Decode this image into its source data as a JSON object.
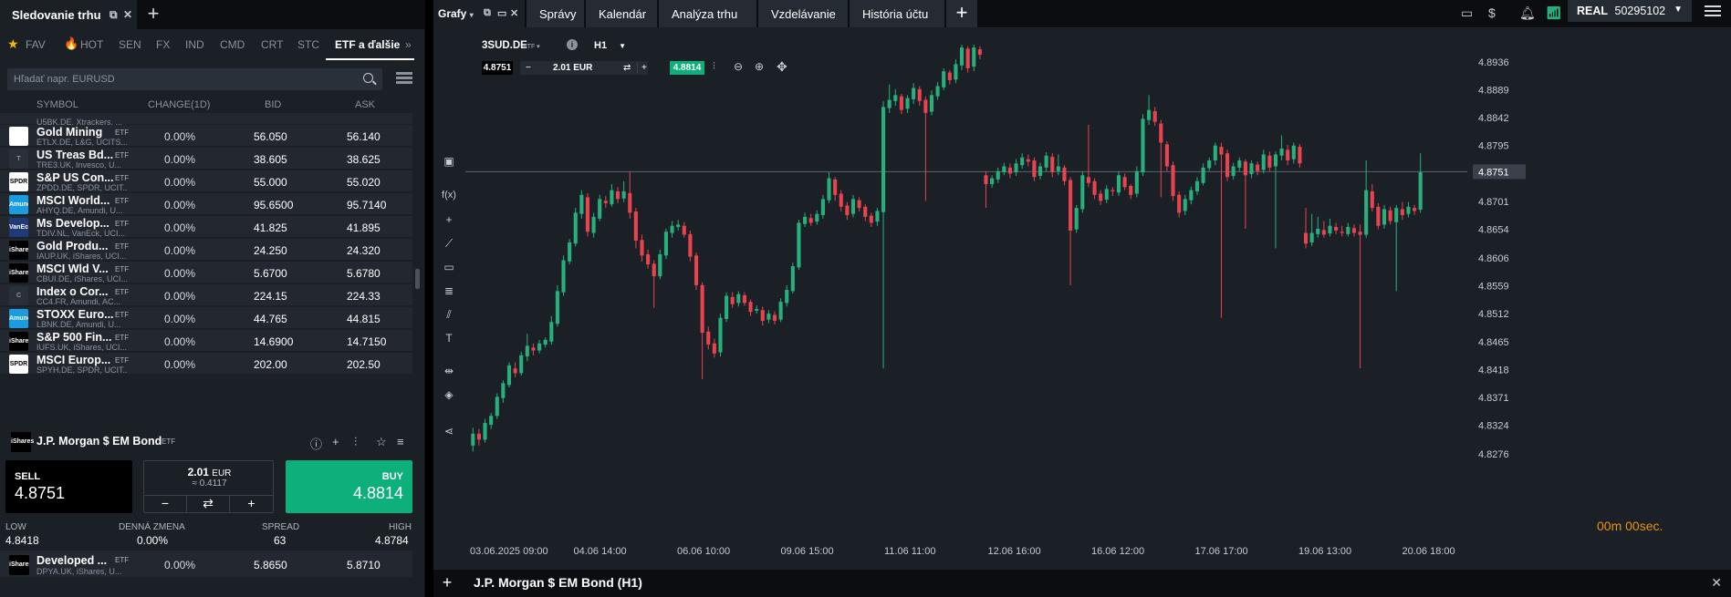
{
  "watchlist": {
    "title": "Sledovanie trhu",
    "tabs": [
      {
        "label": "FAV"
      },
      {
        "label": "HOT"
      },
      {
        "label": "SEN"
      },
      {
        "label": "FX"
      },
      {
        "label": "IND"
      },
      {
        "label": "CMD"
      },
      {
        "label": "CRT"
      },
      {
        "label": "STC"
      },
      {
        "label": "ETF a ďalšie"
      }
    ],
    "search_placeholder": "Hľadať napr. EURUSD",
    "columns": {
      "symbol": "SYMBOL",
      "change": "CHANGE(1D)",
      "bid": "BID",
      "ask": "ASK"
    },
    "partial_row_desc": "U5BK.DE, Xtrackers, ...",
    "rows": [
      {
        "name": "Gold Mining",
        "type": "ETF",
        "desc": "ETLX.DE, L&G, UCITS...",
        "change": "0.00%",
        "bid": "56.050",
        "ask": "56.140",
        "logo": "",
        "logo_bg": "#ffffff",
        "logo_fg": "#2a6e3a"
      },
      {
        "name": "US Treas Bd...",
        "type": "ETF",
        "desc": "TRE3.UK, Invesco, U...",
        "change": "0.00%",
        "bid": "38.605",
        "ask": "38.625",
        "logo": "T",
        "logo_bg": "#2a3039",
        "logo_fg": "#8a929c"
      },
      {
        "name": "S&P US Con...",
        "type": "ETF",
        "desc": "ZPDD.DE, SPDR, UCIT...",
        "change": "0.00%",
        "bid": "55.000",
        "ask": "55.020",
        "logo": "SPDR",
        "logo_bg": "#ffffff",
        "logo_fg": "#000000"
      },
      {
        "name": "MSCI World...",
        "type": "ETF",
        "desc": "AHYQ.DE, Amundi, U...",
        "change": "0.00%",
        "bid": "95.6500",
        "ask": "95.7140",
        "logo": "Amundi",
        "logo_bg": "#1a9de0",
        "logo_fg": "#ffffff"
      },
      {
        "name": "Ms Develop...",
        "type": "ETF",
        "desc": "TDIV.NL, VanEck, UCI...",
        "change": "0.00%",
        "bid": "41.825",
        "ask": "41.895",
        "logo": "VanEck",
        "logo_bg": "#1f3a78",
        "logo_fg": "#ffffff"
      },
      {
        "name": "Gold Produ...",
        "type": "ETF",
        "desc": "IAUP.UK, iShares, UCI...",
        "change": "0.00%",
        "bid": "24.250",
        "ask": "24.320",
        "logo": "iShares",
        "logo_bg": "#000000",
        "logo_fg": "#ffffff"
      },
      {
        "name": "MSCI Wld V...",
        "type": "ETF",
        "desc": "CBUI.DE, iShares, UCI...",
        "change": "0.00%",
        "bid": "5.6700",
        "ask": "5.6780",
        "logo": "iShares",
        "logo_bg": "#000000",
        "logo_fg": "#ffffff"
      },
      {
        "name": "Index o Cor...",
        "type": "ETF",
        "desc": "CC4.FR, Amundi, AC...",
        "change": "0.00%",
        "bid": "224.15",
        "ask": "224.33",
        "logo": "C",
        "logo_bg": "#2a3039",
        "logo_fg": "#8a929c"
      },
      {
        "name": "STOXX Euro...",
        "type": "ETF",
        "desc": "LBNK.DE, Amundi, U...",
        "change": "0.00%",
        "bid": "44.765",
        "ask": "44.815",
        "logo": "Amundi",
        "logo_bg": "#1a9de0",
        "logo_fg": "#ffffff"
      },
      {
        "name": "S&P 500 Fin...",
        "type": "ETF",
        "desc": "IUFS.UK, iShares, UCI...",
        "change": "0.00%",
        "bid": "14.6900",
        "ask": "14.7150",
        "logo": "iShares",
        "logo_bg": "#000000",
        "logo_fg": "#ffffff"
      },
      {
        "name": "MSCI Europ...",
        "type": "ETF",
        "desc": "SPYH.DE, SPDR, UCIT...",
        "change": "0.00%",
        "bid": "202.00",
        "ask": "202.50",
        "logo": "SPDR",
        "logo_bg": "#ffffff",
        "logo_fg": "#000000"
      }
    ],
    "last_row": {
      "name": "Developed ...",
      "type": "ETF",
      "desc": "DPYA.UK, iShares, U...",
      "change": "0.00%",
      "bid": "5.8650",
      "ask": "5.8710",
      "logo": "iShares",
      "logo_bg": "#000000",
      "logo_fg": "#ffffff"
    }
  },
  "detail": {
    "name": "J.P. Morgan $ EM Bond",
    "type": "ETF",
    "logo": "iShares",
    "sell_label": "SELL",
    "sell_price": "4.8751",
    "volume": "2.01",
    "volume_unit": "EUR",
    "volume_approx": "≈ 0.4117",
    "buy_label": "BUY",
    "buy_price": "4.8814",
    "stats": [
      {
        "label": "LOW",
        "value": "4.8418"
      },
      {
        "label": "DENNÁ ZMENA",
        "value": "0.00%"
      },
      {
        "label": "SPREAD",
        "value": "63"
      },
      {
        "label": "HIGH",
        "value": "4.8784"
      }
    ]
  },
  "chart_panel": {
    "menu_label": "Grafy",
    "tabs": [
      {
        "label": "Správy"
      },
      {
        "label": "Kalendár"
      },
      {
        "label": "Analýza trhu"
      },
      {
        "label": "Vzdelávanie"
      },
      {
        "label": "História účtu"
      }
    ],
    "account_type": "REAL",
    "account_number": "50295102",
    "symbol": "3SUD.DE",
    "symbol_type": "ETF",
    "timeframe": "H1",
    "bid_chip": "4.8751",
    "volume_chip": "2.01 EUR",
    "ask_chip": "4.8814",
    "countdown": "00m 00sec.",
    "bottom_title": "J.P. Morgan $ EM Bond (H1)"
  },
  "chart_data": {
    "type": "candlestick",
    "y_ticks": [
      4.8936,
      4.8889,
      4.8842,
      4.8795,
      4.8751,
      4.8701,
      4.8654,
      4.8606,
      4.8559,
      4.8512,
      4.8465,
      4.8418,
      4.8371,
      4.8324,
      4.8276
    ],
    "ylim": [
      4.8276,
      4.8971
    ],
    "x_ticks": [
      "03.06.2025 09:00",
      "04.06 14:00",
      "06.06 10:00",
      "09.06 15:00",
      "11.06 11:00",
      "12.06 16:00",
      "16.06 12:00",
      "17.06 17:00",
      "19.06 13:00",
      "20.06 18:00"
    ],
    "current_price": 4.8751,
    "colors": {
      "up": "#27b07c",
      "down": "#e8434f"
    },
    "candles": [
      [
        4.829,
        4.831,
        4.828,
        4.832
      ],
      [
        4.831,
        4.83,
        4.829,
        4.8318
      ],
      [
        4.83,
        4.8328,
        4.8295,
        4.8335
      ],
      [
        4.8325,
        4.834,
        4.8318,
        4.8345
      ],
      [
        4.834,
        4.8372,
        4.8335,
        4.8378
      ],
      [
        4.837,
        4.8395,
        4.8362,
        4.84
      ],
      [
        4.8392,
        4.8425,
        4.8388,
        4.843
      ],
      [
        4.842,
        4.8412,
        4.8405,
        4.843
      ],
      [
        4.8412,
        4.8442,
        4.8408,
        4.8448
      ],
      [
        4.844,
        4.8458,
        4.8432,
        4.8478
      ],
      [
        4.8455,
        4.845,
        4.8442,
        4.8462
      ],
      [
        4.845,
        4.8462,
        4.8445,
        4.8468
      ],
      [
        4.846,
        4.8468,
        4.8455,
        4.8472
      ],
      [
        4.8465,
        4.8498,
        4.846,
        4.8508
      ],
      [
        4.8495,
        4.855,
        4.849,
        4.856
      ],
      [
        4.8548,
        4.8602,
        4.8542,
        4.861
      ],
      [
        4.86,
        4.8632,
        4.8595,
        4.8638
      ],
      [
        4.863,
        4.8682,
        4.8625,
        4.869
      ],
      [
        4.868,
        4.8712,
        4.8672,
        4.872
      ],
      [
        4.8708,
        4.865,
        4.8642,
        4.8715
      ],
      [
        4.8648,
        4.8675,
        4.864,
        4.8682
      ],
      [
        4.8672,
        4.8705,
        4.8668,
        4.8712
      ],
      [
        4.8702,
        4.8698,
        4.869,
        4.871
      ],
      [
        4.8696,
        4.872,
        4.8692,
        4.873
      ],
      [
        4.8718,
        4.8705,
        4.8698,
        4.8725
      ],
      [
        4.8706,
        4.8718,
        4.87,
        4.8735
      ],
      [
        4.8715,
        4.8682,
        4.8672,
        4.8752
      ],
      [
        4.8684,
        4.8635,
        4.8622,
        4.869
      ],
      [
        4.8636,
        4.861,
        4.86,
        4.8645
      ],
      [
        4.8612,
        4.8595,
        4.8588,
        4.862
      ],
      [
        4.8596,
        4.8575,
        4.8522,
        4.8602
      ],
      [
        4.8575,
        4.8612,
        4.857,
        4.862
      ],
      [
        4.861,
        4.865,
        4.8604,
        4.8655
      ],
      [
        4.8648,
        4.866,
        4.864,
        4.8668
      ],
      [
        4.8658,
        4.8662,
        4.8652,
        4.867
      ],
      [
        4.866,
        4.8645,
        4.864,
        4.8666
      ],
      [
        4.8646,
        4.8608,
        4.86,
        4.8652
      ],
      [
        4.861,
        4.856,
        4.8552,
        4.8615
      ],
      [
        4.856,
        4.848,
        4.8402,
        4.8565
      ],
      [
        4.8482,
        4.846,
        4.8452,
        4.849
      ],
      [
        4.8462,
        4.8445,
        4.8438,
        4.847
      ],
      [
        4.8447,
        4.8505,
        4.844,
        4.8512
      ],
      [
        4.8503,
        4.8542,
        4.8498,
        4.8548
      ],
      [
        4.854,
        4.8528,
        4.8522,
        4.8548
      ],
      [
        4.853,
        4.8545,
        4.8524,
        4.855
      ],
      [
        4.8543,
        4.853,
        4.8525,
        4.8548
      ],
      [
        4.8532,
        4.8515,
        4.8508,
        4.8536
      ],
      [
        4.8517,
        4.852,
        4.8512,
        4.8526
      ],
      [
        4.8518,
        4.85,
        4.8492,
        4.8524
      ],
      [
        4.8502,
        4.8512,
        4.8496,
        4.8518
      ],
      [
        4.851,
        4.85,
        4.8494,
        4.8516
      ],
      [
        4.8502,
        4.8532,
        4.8498,
        4.8538
      ],
      [
        4.853,
        4.8552,
        4.8524,
        4.856
      ],
      [
        4.855,
        4.8592,
        4.8546,
        4.8598
      ],
      [
        4.859,
        4.8665,
        4.8586,
        4.867
      ],
      [
        4.8663,
        4.8675,
        4.8658,
        4.8682
      ],
      [
        4.8673,
        4.8665,
        4.866,
        4.868
      ],
      [
        4.8667,
        4.868,
        4.8662,
        4.8686
      ],
      [
        4.8678,
        4.8705,
        4.8672,
        4.8712
      ],
      [
        4.8703,
        4.874,
        4.8698,
        4.875
      ],
      [
        4.8738,
        4.8712,
        4.8702,
        4.8742
      ],
      [
        4.8714,
        4.8692,
        4.8684,
        4.872
      ],
      [
        4.8694,
        4.8678,
        4.867,
        4.87
      ],
      [
        4.868,
        4.8705,
        4.8674,
        4.8712
      ],
      [
        4.8703,
        4.869,
        4.8684,
        4.8708
      ],
      [
        4.8692,
        4.8675,
        4.8668,
        4.8696
      ],
      [
        4.8677,
        4.8665,
        4.8658,
        4.8682
      ],
      [
        4.8667,
        4.8685,
        4.866,
        4.869
      ],
      [
        4.8683,
        4.886,
        4.842,
        4.887
      ],
      [
        4.8858,
        4.8872,
        4.885,
        4.8898
      ],
      [
        4.887,
        4.888,
        4.8862,
        4.889
      ],
      [
        4.8878,
        4.8855,
        4.8848,
        4.8882
      ],
      [
        4.8857,
        4.8875,
        4.885,
        4.888
      ],
      [
        4.8873,
        4.8892,
        4.8865,
        4.89
      ],
      [
        4.889,
        4.887,
        4.8862,
        4.8895
      ],
      [
        4.8872,
        4.885,
        4.8702,
        4.8878
      ],
      [
        4.8852,
        4.888,
        4.8846,
        4.8888
      ],
      [
        4.8878,
        4.8895,
        4.8872,
        4.8902
      ],
      [
        4.8893,
        4.892,
        4.8888,
        4.8925
      ],
      [
        4.8918,
        4.8905,
        4.8898,
        4.8922
      ],
      [
        4.8906,
        4.8932,
        4.89,
        4.894
      ],
      [
        4.893,
        4.896,
        4.8922,
        4.8965
      ],
      [
        4.8958,
        4.8925,
        4.8918,
        4.8962
      ],
      [
        4.8928,
        4.896,
        4.892,
        4.8965
      ],
      [
        4.8957,
        4.8948,
        4.894,
        4.8962
      ],
      [
        4.8745,
        4.873,
        4.869,
        4.8752
      ],
      [
        4.873,
        4.874,
        4.8724,
        4.8745
      ],
      [
        4.8738,
        4.8752,
        4.8732,
        4.8758
      ],
      [
        4.875,
        4.876,
        4.8745,
        4.8766
      ],
      [
        4.8758,
        4.8748,
        4.874,
        4.8765
      ],
      [
        4.875,
        4.8765,
        4.8744,
        4.8772
      ],
      [
        4.8762,
        4.8775,
        4.8756,
        4.8782
      ],
      [
        4.8772,
        4.8768,
        4.876,
        4.878
      ],
      [
        4.877,
        4.8742,
        4.8735,
        4.8775
      ],
      [
        4.8744,
        4.876,
        4.8738,
        4.8766
      ],
      [
        4.8758,
        4.8778,
        4.8752,
        4.8784
      ],
      [
        4.8776,
        4.875,
        4.8742,
        4.8782
      ],
      [
        4.8752,
        4.876,
        4.8745,
        4.878
      ],
      [
        4.8758,
        4.8735,
        4.8728,
        4.8762
      ],
      [
        4.8737,
        4.8652,
        4.856,
        4.8742
      ],
      [
        4.8654,
        4.869,
        4.8648,
        4.8695
      ],
      [
        4.8688,
        4.8745,
        4.8682,
        4.8752
      ],
      [
        4.8742,
        4.8732,
        4.8725,
        4.883
      ],
      [
        4.8735,
        4.8712,
        4.8705,
        4.874
      ],
      [
        4.8714,
        4.8702,
        4.8695,
        4.872
      ],
      [
        4.8704,
        4.8722,
        4.8698,
        4.8728
      ],
      [
        4.872,
        4.8718,
        4.871,
        4.8725
      ],
      [
        4.8716,
        4.8745,
        4.871,
        4.8752
      ],
      [
        4.8742,
        4.8725,
        4.872,
        4.8748
      ],
      [
        4.8727,
        4.8712,
        4.8705,
        4.873
      ],
      [
        4.8714,
        4.8752,
        4.8708,
        4.876
      ],
      [
        4.875,
        4.884,
        4.8744,
        4.8848
      ],
      [
        4.8838,
        4.8855,
        4.883,
        4.888
      ],
      [
        4.8853,
        4.8835,
        4.8828,
        4.886
      ],
      [
        4.8832,
        4.88,
        4.8708,
        4.8838
      ],
      [
        4.8797,
        4.876,
        4.8752,
        4.8802
      ],
      [
        4.8762,
        4.871,
        4.8702,
        4.8768
      ],
      [
        4.8712,
        4.8682,
        4.8674,
        4.8718
      ],
      [
        4.8685,
        4.8705,
        4.8678,
        4.8712
      ],
      [
        4.8703,
        4.872,
        4.8696,
        4.8726
      ],
      [
        4.8718,
        4.8735,
        4.8712,
        4.8742
      ],
      [
        4.8732,
        4.8758,
        4.8728,
        4.8765
      ],
      [
        4.8757,
        4.877,
        4.8752,
        4.8775
      ],
      [
        4.877,
        4.8795,
        4.8762,
        4.88
      ],
      [
        4.8793,
        4.878,
        4.8505,
        4.88
      ],
      [
        4.8782,
        4.8742,
        4.8735,
        4.8788
      ],
      [
        4.8744,
        4.876,
        4.8738,
        4.8766
      ],
      [
        4.8758,
        4.877,
        4.8752,
        4.8775
      ],
      [
        4.8768,
        4.8745,
        4.8655,
        4.8772
      ],
      [
        4.8747,
        4.8765,
        4.874,
        4.877
      ],
      [
        4.8763,
        4.8752,
        4.8745,
        4.8768
      ],
      [
        4.8754,
        4.878,
        4.8748,
        4.8788
      ],
      [
        4.8778,
        4.8758,
        4.8752,
        4.8785
      ],
      [
        4.876,
        4.878,
        4.8622,
        4.8785
      ],
      [
        4.8778,
        4.879,
        4.877,
        4.8812
      ],
      [
        4.8788,
        4.877,
        4.8762,
        4.8796
      ],
      [
        4.8772,
        4.8795,
        4.8765,
        4.88
      ],
      [
        4.8793,
        4.8765,
        4.8758,
        4.8798
      ],
      [
        4.8648,
        4.863,
        4.8622,
        4.869
      ],
      [
        4.8632,
        4.8648,
        4.8626,
        4.868
      ],
      [
        4.8646,
        4.8655,
        4.864,
        4.8675
      ],
      [
        4.8653,
        4.8645,
        4.864,
        4.8668
      ],
      [
        4.8647,
        4.866,
        4.8642,
        4.8672
      ],
      [
        4.8658,
        4.8652,
        4.8646,
        4.8665
      ],
      [
        4.865,
        4.8648,
        4.8642,
        4.866
      ],
      [
        4.8646,
        4.8658,
        4.8642,
        4.8665
      ],
      [
        4.8656,
        4.8648,
        4.8642,
        4.8662
      ],
      [
        4.865,
        4.8645,
        4.842,
        4.8662
      ],
      [
        4.8645,
        4.872,
        4.864,
        4.877
      ],
      [
        4.8718,
        4.869,
        4.8684,
        4.873
      ],
      [
        4.8692,
        4.866,
        4.8654,
        4.8698
      ],
      [
        4.8662,
        4.8688,
        4.8655,
        4.8695
      ],
      [
        4.8686,
        4.8668,
        4.8662,
        4.8692
      ],
      [
        4.8666,
        4.869,
        4.855,
        4.8695
      ],
      [
        4.8688,
        4.8678,
        4.867,
        4.87
      ],
      [
        4.868,
        4.8692,
        4.8674,
        4.87
      ],
      [
        4.869,
        4.8685,
        4.8678,
        4.8695
      ],
      [
        4.8687,
        4.875,
        4.8682,
        4.8782
      ]
    ]
  }
}
